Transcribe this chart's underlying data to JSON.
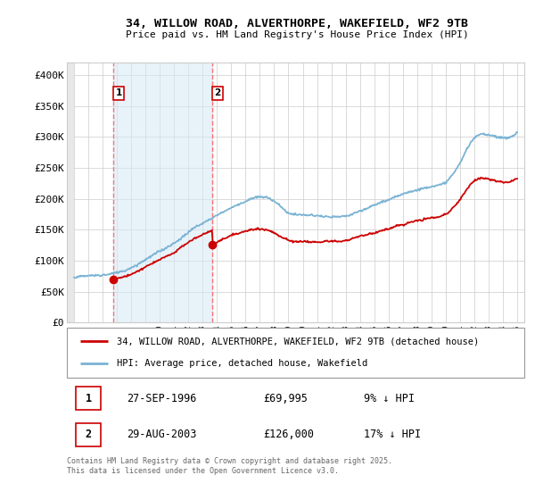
{
  "title": "34, WILLOW ROAD, ALVERTHORPE, WAKEFIELD, WF2 9TB",
  "subtitle": "Price paid vs. HM Land Registry's House Price Index (HPI)",
  "ylabel_ticks": [
    0,
    50000,
    100000,
    150000,
    200000,
    250000,
    300000,
    350000,
    400000
  ],
  "ylabel_labels": [
    "£0",
    "£50K",
    "£100K",
    "£150K",
    "£200K",
    "£250K",
    "£300K",
    "£350K",
    "£400K"
  ],
  "ylim": [
    0,
    420000
  ],
  "xlim_start": 1993.5,
  "xlim_end": 2025.5,
  "hpi_color": "#7ab3d4",
  "hpi_fill_color": "#d6e8f5",
  "price_color": "#cc0000",
  "sale1_year": 1996.74,
  "sale1_price": 69995,
  "sale1_date": "27-SEP-1996",
  "sale1_price_str": "£69,995",
  "sale1_pct": "9% ↓ HPI",
  "sale2_year": 2003.66,
  "sale2_price": 126000,
  "sale2_date": "29-AUG-2003",
  "sale2_price_str": "£126,000",
  "sale2_pct": "17% ↓ HPI",
  "legend_line1": "34, WILLOW ROAD, ALVERTHORPE, WAKEFIELD, WF2 9TB (detached house)",
  "legend_line2": "HPI: Average price, detached house, Wakefield",
  "footer": "Contains HM Land Registry data © Crown copyright and database right 2025.\nThis data is licensed under the Open Government Licence v3.0.",
  "plot_bg": "#ffffff",
  "grid_color": "#cccccc"
}
